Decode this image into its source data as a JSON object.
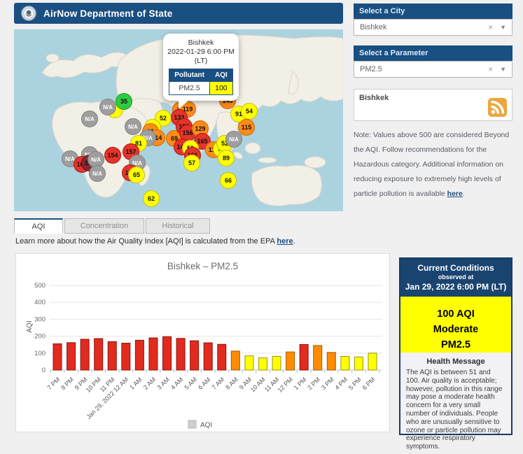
{
  "header": {
    "title": "AirNow Department of State"
  },
  "map": {
    "popup": {
      "city": "Bishkek",
      "datetime": "2022-01-29 6:00 PM",
      "tz": "(LT)",
      "col_pollutant": "Pollutant",
      "col_aqi": "AQI",
      "pollutant": "PM2.5",
      "aqi": "100"
    },
    "markers": [
      {
        "v": "",
        "x": 144,
        "y": 115,
        "c": "yellow"
      },
      {
        "v": "N/A",
        "x": 134,
        "y": 111,
        "c": "na"
      },
      {
        "v": "35",
        "x": 157,
        "y": 103,
        "c": "green"
      },
      {
        "v": "N/A",
        "x": 108,
        "y": 128,
        "c": "na"
      },
      {
        "v": "52",
        "x": 213,
        "y": 127,
        "c": "yellow"
      },
      {
        "v": "87",
        "x": 198,
        "y": 140,
        "c": "yellow"
      },
      {
        "v": "N/A",
        "x": 170,
        "y": 139,
        "c": "na"
      },
      {
        "v": "81",
        "x": 195,
        "y": 146,
        "c": "orange"
      },
      {
        "v": "114",
        "x": 204,
        "y": 155,
        "c": "orange"
      },
      {
        "v": "N/A",
        "x": 191,
        "y": 155,
        "c": "na"
      },
      {
        "v": "69",
        "x": 229,
        "y": 156,
        "c": "orange"
      },
      {
        "v": "81",
        "x": 178,
        "y": 163,
        "c": "yellow"
      },
      {
        "v": "157",
        "x": 167,
        "y": 175,
        "c": "red"
      },
      {
        "v": "154",
        "x": 141,
        "y": 180,
        "c": "red"
      },
      {
        "v": "N/A",
        "x": 108,
        "y": 179,
        "c": "na"
      },
      {
        "v": "N/A",
        "x": 80,
        "y": 185,
        "c": "na"
      },
      {
        "v": "161",
        "x": 97,
        "y": 193,
        "c": "red"
      },
      {
        "v": "324",
        "x": 108,
        "y": 191,
        "c": "maroon"
      },
      {
        "v": "N/A",
        "x": 117,
        "y": 186,
        "c": "na"
      },
      {
        "v": "N/A",
        "x": 119,
        "y": 206,
        "c": "na"
      },
      {
        "v": "N/A",
        "x": 176,
        "y": 191,
        "c": "na"
      },
      {
        "v": "167",
        "x": 166,
        "y": 205,
        "c": "red"
      },
      {
        "v": "65",
        "x": 175,
        "y": 208,
        "c": "yellow"
      },
      {
        "v": "62",
        "x": 196,
        "y": 242,
        "c": "yellow"
      },
      {
        "v": "143",
        "x": 305,
        "y": 102,
        "c": "orange"
      },
      {
        "v": "55",
        "x": 238,
        "y": 115,
        "c": "orange"
      },
      {
        "v": "119",
        "x": 248,
        "y": 114,
        "c": "orange"
      },
      {
        "v": "133",
        "x": 236,
        "y": 126,
        "c": "red"
      },
      {
        "v": "155",
        "x": 243,
        "y": 139,
        "c": "red"
      },
      {
        "v": "156",
        "x": 248,
        "y": 148,
        "c": "red"
      },
      {
        "v": "129",
        "x": 266,
        "y": 142,
        "c": "orange"
      },
      {
        "v": "165",
        "x": 269,
        "y": 160,
        "c": "red"
      },
      {
        "v": "148",
        "x": 240,
        "y": 168,
        "c": "red"
      },
      {
        "v": "59",
        "x": 252,
        "y": 170,
        "c": "yellow"
      },
      {
        "v": "161",
        "x": 255,
        "y": 180,
        "c": "red"
      },
      {
        "v": "57",
        "x": 254,
        "y": 191,
        "c": "yellow"
      },
      {
        "v": "118",
        "x": 285,
        "y": 172,
        "c": "orange"
      },
      {
        "v": "73",
        "x": 296,
        "y": 171,
        "c": "yellow"
      },
      {
        "v": "52",
        "x": 301,
        "y": 163,
        "c": "yellow"
      },
      {
        "v": "N/A",
        "x": 314,
        "y": 157,
        "c": "na"
      },
      {
        "v": "91",
        "x": 321,
        "y": 121,
        "c": "yellow"
      },
      {
        "v": "54",
        "x": 336,
        "y": 117,
        "c": "yellow"
      },
      {
        "v": "115",
        "x": 332,
        "y": 140,
        "c": "orange"
      },
      {
        "v": "89",
        "x": 303,
        "y": 184,
        "c": "yellow"
      },
      {
        "v": "66",
        "x": 306,
        "y": 216,
        "c": "yellow"
      }
    ]
  },
  "sidebar": {
    "city_label": "Select a City",
    "city_value": "Bishkek",
    "param_label": "Select a Parameter",
    "param_value": "PM2.5",
    "rss_city": "Bishkek",
    "note_prefix": "Note: Values above 500 are considered Beyond the AQI. Follow recommendations for the Hazardous category. Additional information on reducing exposure to extremely high levels of particle pollution is available ",
    "note_link": "here",
    "note_suffix": "."
  },
  "tabs": [
    {
      "label": "AQI",
      "active": true
    },
    {
      "label": "Concentration",
      "active": false
    },
    {
      "label": "Historical",
      "active": false
    }
  ],
  "learn_more": {
    "prefix": "Learn more about how the Air Quality Index [AQI] is calculated from the EPA ",
    "link": "here",
    "suffix": "."
  },
  "chart_data": {
    "type": "bar",
    "title": "Bishkek – PM2.5",
    "ylabel": "AQI",
    "ylim": [
      0,
      500
    ],
    "yticks": [
      0,
      100,
      200,
      300,
      400,
      500
    ],
    "grid": true,
    "legend": [
      "AQI"
    ],
    "legend_position": "bottom",
    "categories": [
      "7 PM",
      "8 PM",
      "9 PM",
      "10 PM",
      "11 PM",
      "Jan 29, 2022 12 AM",
      "1 AM",
      "2 AM",
      "3 AM",
      "4 AM",
      "5 AM",
      "6 AM",
      "7 AM",
      "8 AM",
      "9 AM",
      "10 AM",
      "11 AM",
      "12 PM",
      "1 PM",
      "2 PM",
      "3 PM",
      "4 PM",
      "5 PM",
      "6 PM"
    ],
    "values": [
      155,
      162,
      182,
      186,
      168,
      159,
      176,
      190,
      197,
      187,
      173,
      161,
      152,
      112,
      84,
      72,
      81,
      107,
      151,
      145,
      104,
      81,
      77,
      100
    ]
  },
  "conditions": {
    "title": "Current Conditions",
    "subtitle": "observed at",
    "datetime": "Jan 29, 2022 6:00 PM (LT)",
    "aqi_line": "100 AQI",
    "category": "Moderate",
    "pollutant": "PM2.5",
    "health_title": "Health Message",
    "health_text": "The AQI is between 51 and 100. Air quality is acceptable; however, pollution in this range may pose a moderate health concern for a very small number of individuals. People who are unusually sensitive to ozone or particle pollution may experience respiratory symptoms."
  },
  "colors": {
    "brand": "#1a4f82",
    "aqi_yellow": "#ffff00",
    "aqi_orange": "#ff8c1a",
    "aqi_red": "#e5342a",
    "aqi_green": "#2ecc40",
    "aqi_maroon": "#8c2533",
    "na_gray": "#9e9e9e",
    "ocean": "#abd3df",
    "land": "#f2efe6"
  }
}
